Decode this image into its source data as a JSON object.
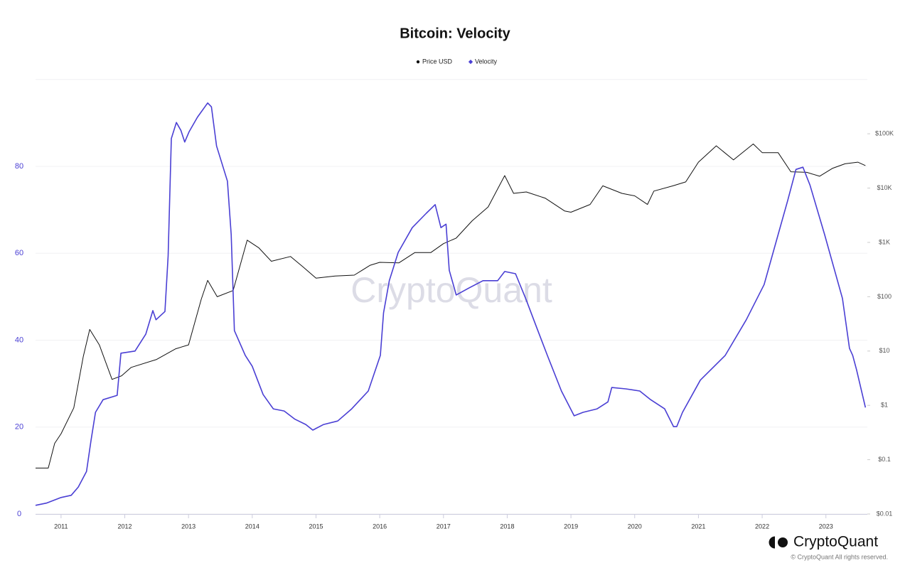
{
  "chart_data": {
    "type": "line",
    "title": "Bitcoin: Velocity",
    "watermark": "CryptoQuant",
    "brand": "CryptoQuant",
    "copyright": "© CryptoQuant All rights reserved.",
    "legend": "top",
    "grid": true,
    "y2log": true,
    "xlim": [
      2010.6,
      2023.65
    ],
    "xticks": [
      2011,
      2012,
      2013,
      2014,
      2015,
      2016,
      2017,
      2018,
      2019,
      2020,
      2021,
      2022,
      2023
    ],
    "ylim": [
      0,
      100
    ],
    "yticks": [
      0,
      20,
      40,
      60,
      80
    ],
    "y2lim": [
      0.01,
      1000000
    ],
    "y2ticks": [
      {
        "value": 0.01,
        "label": "$0.01"
      },
      {
        "value": 0.1,
        "label": "$0.1"
      },
      {
        "value": 1,
        "label": "$1"
      },
      {
        "value": 10,
        "label": "$10"
      },
      {
        "value": 100,
        "label": "$100"
      },
      {
        "value": 1000,
        "label": "$1K"
      },
      {
        "value": 10000,
        "label": "$10K"
      },
      {
        "value": 100000,
        "label": "$100K"
      }
    ],
    "series": [
      {
        "name": "Price USD",
        "color": "#111111",
        "axis": "y2",
        "x": [
          2010.6,
          2010.8,
          2010.9,
          2011.0,
          2011.2,
          2011.35,
          2011.45,
          2011.6,
          2011.8,
          2011.95,
          2012.1,
          2012.5,
          2012.8,
          2013.0,
          2013.2,
          2013.3,
          2013.45,
          2013.7,
          2013.92,
          2014.1,
          2014.3,
          2014.6,
          2014.8,
          2015.0,
          2015.3,
          2015.6,
          2015.85,
          2016.0,
          2016.3,
          2016.55,
          2016.8,
          2017.0,
          2017.2,
          2017.45,
          2017.7,
          2017.96,
          2018.1,
          2018.3,
          2018.6,
          2018.9,
          2019.0,
          2019.3,
          2019.5,
          2019.8,
          2020.0,
          2020.2,
          2020.3,
          2020.6,
          2020.8,
          2021.0,
          2021.28,
          2021.55,
          2021.86,
          2022.0,
          2022.25,
          2022.45,
          2022.7,
          2022.9,
          2023.1,
          2023.3,
          2023.5,
          2023.62
        ],
        "values": [
          0.07,
          0.07,
          0.2,
          0.3,
          0.9,
          8,
          25,
          13,
          3,
          3.5,
          5,
          7,
          11,
          13,
          90,
          200,
          100,
          130,
          1100,
          800,
          450,
          550,
          350,
          220,
          240,
          250,
          380,
          430,
          420,
          650,
          650,
          950,
          1200,
          2500,
          4500,
          17000,
          8000,
          8500,
          6500,
          3800,
          3600,
          5000,
          11000,
          8000,
          7200,
          5000,
          8800,
          11000,
          13000,
          30000,
          60000,
          33000,
          65000,
          45000,
          45000,
          20000,
          19500,
          16500,
          23000,
          28000,
          30000,
          26000
        ]
      },
      {
        "name": "Velocity",
        "color": "#4a3fd4",
        "axis": "y",
        "x": [
          2010.6,
          2010.77,
          2011.0,
          2011.16,
          2011.27,
          2011.4,
          2011.47,
          2011.54,
          2011.66,
          2011.88,
          2011.94,
          2012.16,
          2012.33,
          2012.44,
          2012.49,
          2012.63,
          2012.68,
          2012.73,
          2012.81,
          2012.88,
          2012.94,
          2013.01,
          2013.14,
          2013.3,
          2013.36,
          2013.44,
          2013.61,
          2013.67,
          2013.72,
          2013.89,
          2014.0,
          2014.17,
          2014.33,
          2014.5,
          2014.67,
          2014.84,
          2014.95,
          2015.12,
          2015.34,
          2015.56,
          2015.82,
          2016.01,
          2016.06,
          2016.15,
          2016.29,
          2016.51,
          2016.73,
          2016.87,
          2016.96,
          2017.04,
          2017.09,
          2017.2,
          2017.4,
          2017.62,
          2017.85,
          2017.96,
          2018.13,
          2018.29,
          2018.46,
          2018.63,
          2018.85,
          2019.05,
          2019.19,
          2019.41,
          2019.58,
          2019.64,
          2019.86,
          2020.08,
          2020.25,
          2020.47,
          2020.61,
          2020.66,
          2020.75,
          2021.03,
          2021.42,
          2021.75,
          2022.03,
          2022.25,
          2022.4,
          2022.53,
          2022.64,
          2022.75,
          2022.98,
          2023.26,
          2023.37,
          2023.42,
          2023.48,
          2023.62
        ],
        "values": [
          2.0,
          2.5,
          3.8,
          4.3,
          6.2,
          9.8,
          16.9,
          23.4,
          26.3,
          27.3,
          37,
          37.5,
          41.4,
          46.8,
          44.7,
          46.6,
          59.4,
          86.4,
          90.1,
          88.3,
          85.6,
          88,
          91.3,
          94.6,
          93.7,
          84.7,
          76.6,
          64.3,
          42.2,
          36.5,
          34.0,
          27.5,
          24.2,
          23.7,
          21.8,
          20.6,
          19.3,
          20.6,
          21.4,
          24.2,
          28.3,
          36.5,
          46.3,
          53.7,
          60.2,
          65.9,
          69.2,
          71.2,
          65.9,
          66.7,
          56.1,
          50.4,
          52.0,
          53.7,
          53.7,
          55.8,
          55.3,
          49.6,
          43.0,
          36.5,
          28.3,
          22.6,
          23.4,
          24.2,
          25.8,
          29.1,
          28.8,
          28.3,
          26.3,
          24.2,
          20.1,
          20.1,
          23.4,
          30.8,
          36.5,
          44.7,
          52.8,
          64.3,
          72.1,
          79.3,
          79.8,
          75.7,
          64.3,
          49.6,
          38.1,
          36.5,
          33.2,
          24.5
        ]
      }
    ]
  }
}
